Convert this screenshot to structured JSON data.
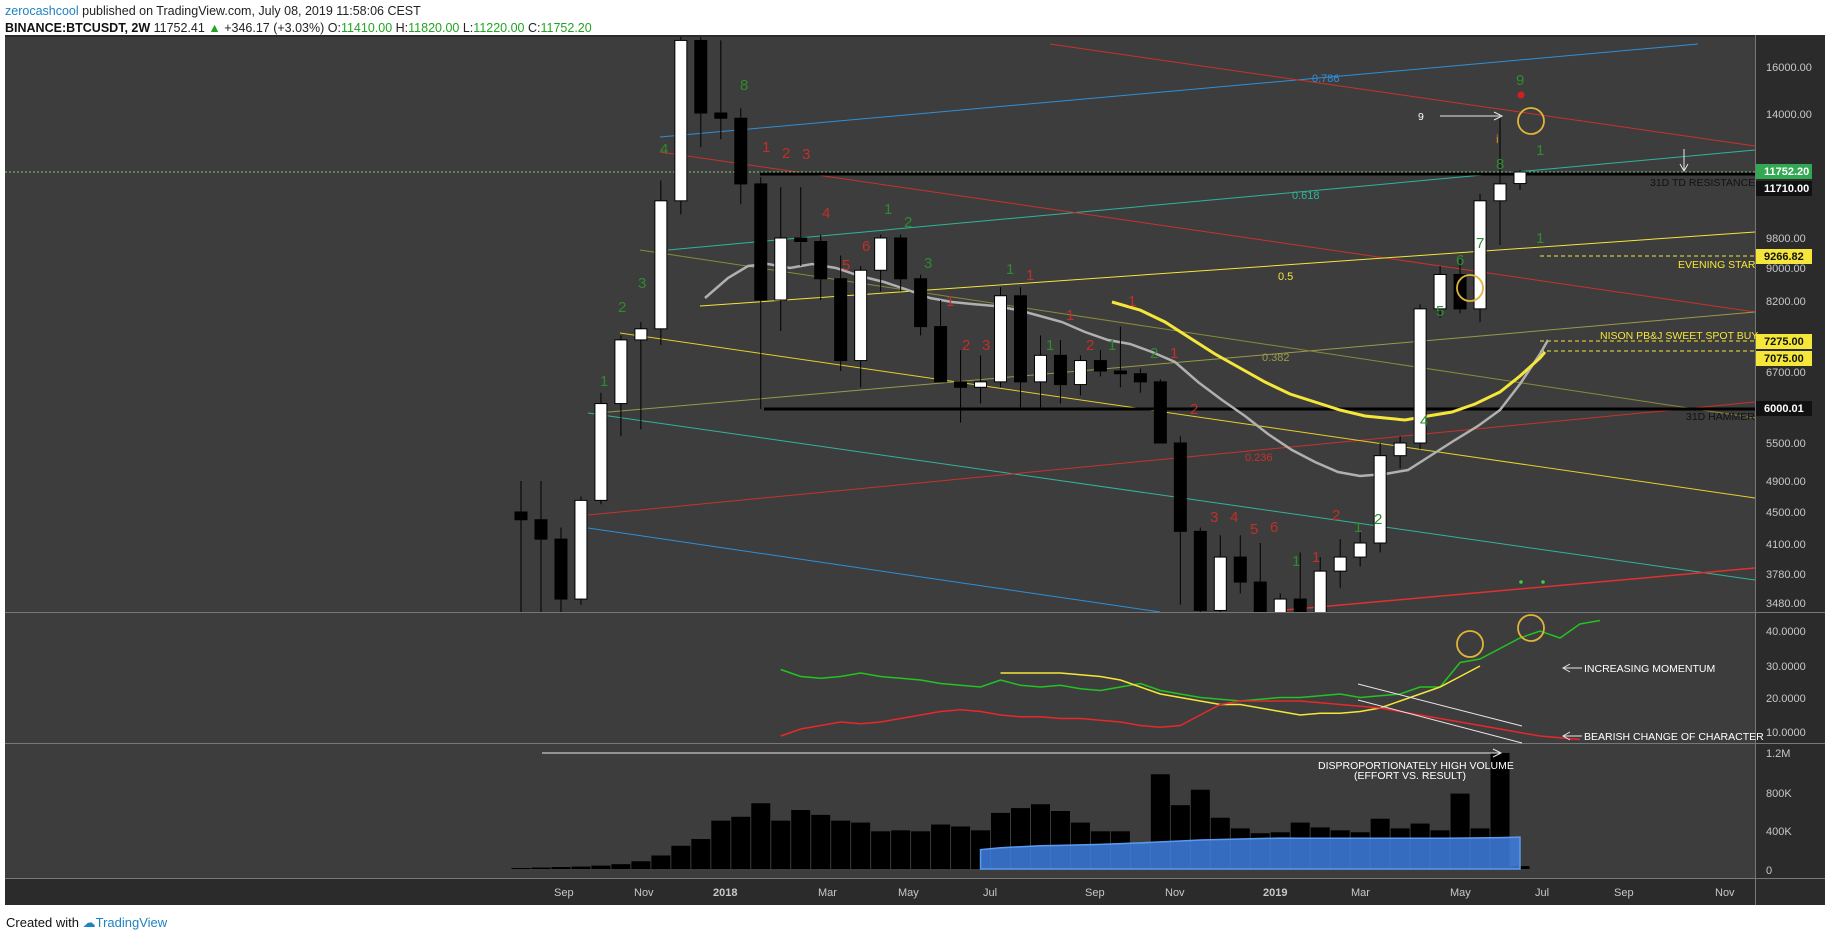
{
  "header": {
    "author": "zerocashcool",
    "published": "published on TradingView.com, July 08, 2019 11:58:06 CEST",
    "symbol": "BINANCE:BTCUSDT, 2W",
    "last": "11752.41",
    "change": "+346.17 (+3.03%)",
    "o_label": "O:",
    "o_value": "11410.00",
    "h_label": "H:",
    "h_value": "11820.00",
    "l_label": "L:",
    "l_value": "11220.00",
    "c_label": "C:",
    "c_value": "11752.20"
  },
  "footer": {
    "created_with": "Created with",
    "brand": "TradingView"
  },
  "colors": {
    "pane_bg": "#3d3d3d",
    "frame_bg": "#2b2b2b",
    "up_candle": "#ffffff",
    "down_candle": "#000000",
    "green_label": "#2e8b2e",
    "red_label": "#c0302a",
    "yellow": "#f5e63a",
    "blue_channel": "#2f8fd8",
    "red_line": "#c8322e",
    "teal_line": "#2fb59a",
    "price_tag_green": "#33a853",
    "price_tag_yellow": "#f5e63a"
  },
  "chart_data": [
    {
      "type": "candlestick",
      "title": "",
      "price_axis_ticks": [
        "16000.00",
        "14000.00",
        "11752.20",
        "11710.00",
        "9800.00",
        "9266.82",
        "9000.00",
        "8200.00",
        "7275.00",
        "7075.00",
        "6700.00",
        "6000.01",
        "5500.00",
        "4900.00",
        "4500.00",
        "4100.00",
        "3780.00",
        "3480.00"
      ],
      "x_ticks": [
        "Sep",
        "Nov",
        "2018",
        "Mar",
        "May",
        "Jul",
        "Sep",
        "Nov",
        "2019",
        "Mar",
        "May",
        "Jul",
        "Sep",
        "Nov"
      ],
      "price_tags": [
        {
          "value": "11752.20",
          "style": "green"
        },
        {
          "value": "11710.00",
          "style": "dark"
        },
        {
          "value": "9266.82",
          "style": "yellow"
        },
        {
          "value": "7275.00",
          "style": "yellow"
        },
        {
          "value": "7075.00",
          "style": "yellow"
        },
        {
          "value": "6000.01",
          "style": "dark"
        }
      ],
      "fib_labels": [
        "0.786",
        "0.618",
        "0.5",
        "0.382",
        "0.236"
      ],
      "annotations": [
        "9",
        "31D TD RESISTANCE",
        "EVENING STAR",
        "NISON PB&J SWEET SPOT BUY",
        "31D HAMMER"
      ],
      "candles": [
        {
          "o": 4500,
          "h": 4900,
          "l": 3200,
          "c": 4400
        },
        {
          "o": 4400,
          "h": 4900,
          "l": 3400,
          "c": 4150
        },
        {
          "o": 4150,
          "h": 4300,
          "l": 3200,
          "c": 3550
        },
        {
          "o": 3550,
          "h": 4700,
          "l": 3500,
          "c": 4650
        },
        {
          "o": 4650,
          "h": 6300,
          "l": 4600,
          "c": 6100
        },
        {
          "o": 6100,
          "h": 7400,
          "l": 5600,
          "c": 7300
        },
        {
          "o": 7300,
          "h": 7700,
          "l": 5700,
          "c": 7550
        },
        {
          "o": 7550,
          "h": 11500,
          "l": 7200,
          "c": 10900
        },
        {
          "o": 10900,
          "h": 19800,
          "l": 10500,
          "c": 17200
        },
        {
          "o": 17200,
          "h": 17800,
          "l": 12700,
          "c": 14000
        },
        {
          "o": 14000,
          "h": 17200,
          "l": 13000,
          "c": 13800
        },
        {
          "o": 13800,
          "h": 14200,
          "l": 10800,
          "c": 11400
        },
        {
          "o": 11400,
          "h": 11600,
          "l": 6000,
          "c": 8200
        },
        {
          "o": 8200,
          "h": 11300,
          "l": 7500,
          "c": 9800
        },
        {
          "o": 9800,
          "h": 11300,
          "l": 9000,
          "c": 9700
        },
        {
          "o": 9700,
          "h": 9900,
          "l": 8200,
          "c": 8700
        },
        {
          "o": 8700,
          "h": 9300,
          "l": 6700,
          "c": 6900
        },
        {
          "o": 6900,
          "h": 9000,
          "l": 6400,
          "c": 8900
        },
        {
          "o": 8900,
          "h": 9900,
          "l": 8400,
          "c": 9800
        },
        {
          "o": 9800,
          "h": 9900,
          "l": 8400,
          "c": 8700
        },
        {
          "o": 8700,
          "h": 8800,
          "l": 7400,
          "c": 7600
        },
        {
          "o": 7600,
          "h": 8200,
          "l": 6500,
          "c": 6500
        },
        {
          "o": 6500,
          "h": 7100,
          "l": 5800,
          "c": 6400
        },
        {
          "o": 6400,
          "h": 7000,
          "l": 6100,
          "c": 6500
        },
        {
          "o": 6500,
          "h": 8500,
          "l": 6400,
          "c": 8300
        },
        {
          "o": 8300,
          "h": 8500,
          "l": 6000,
          "c": 6500
        },
        {
          "o": 6500,
          "h": 7400,
          "l": 6000,
          "c": 7000
        },
        {
          "o": 7000,
          "h": 7300,
          "l": 6100,
          "c": 6450
        },
        {
          "o": 6450,
          "h": 7000,
          "l": 6250,
          "c": 6900
        },
        {
          "o": 6900,
          "h": 7100,
          "l": 6600,
          "c": 6700
        },
        {
          "o": 6700,
          "h": 7600,
          "l": 6400,
          "c": 6650
        },
        {
          "o": 6650,
          "h": 6750,
          "l": 6300,
          "c": 6500
        },
        {
          "o": 6500,
          "h": 6550,
          "l": 5500,
          "c": 5500
        },
        {
          "o": 5500,
          "h": 5600,
          "l": 3500,
          "c": 4250
        },
        {
          "o": 4250,
          "h": 4300,
          "l": 3200,
          "c": 3450
        },
        {
          "o": 3450,
          "h": 4200,
          "l": 3200,
          "c": 3950
        },
        {
          "o": 3950,
          "h": 4200,
          "l": 3600,
          "c": 3700
        },
        {
          "o": 3700,
          "h": 4100,
          "l": 3350,
          "c": 3400
        },
        {
          "o": 3400,
          "h": 3600,
          "l": 3360,
          "c": 3550
        },
        {
          "o": 3550,
          "h": 4000,
          "l": 3350,
          "c": 3420
        },
        {
          "o": 3420,
          "h": 3950,
          "l": 3400,
          "c": 3800
        },
        {
          "o": 3800,
          "h": 4150,
          "l": 3650,
          "c": 3950
        },
        {
          "o": 3950,
          "h": 4250,
          "l": 3850,
          "c": 4100
        },
        {
          "o": 4100,
          "h": 5500,
          "l": 4000,
          "c": 5300
        },
        {
          "o": 5300,
          "h": 5600,
          "l": 5100,
          "c": 5500
        },
        {
          "o": 5500,
          "h": 8100,
          "l": 5400,
          "c": 8000
        },
        {
          "o": 8000,
          "h": 9000,
          "l": 7800,
          "c": 8800
        },
        {
          "o": 8800,
          "h": 9200,
          "l": 7900,
          "c": 8000
        },
        {
          "o": 8000,
          "h": 11100,
          "l": 7700,
          "c": 10900
        },
        {
          "o": 10900,
          "h": 13800,
          "l": 9600,
          "c": 11400
        },
        {
          "o": 11410,
          "h": 11820,
          "l": 11220,
          "c": 11752
        }
      ]
    },
    {
      "type": "line",
      "title": "",
      "y_ticks": [
        "40.0000",
        "30.0000",
        "20.0000",
        "10.0000"
      ],
      "ylim": [
        5,
        43
      ],
      "annotations": [
        "INCREASING MOMENTUM",
        "BEARISH CHANGE OF CHARACTER"
      ],
      "series": [
        {
          "color": "#22c322",
          "start": 13,
          "values": [
            29,
            27,
            26.5,
            27,
            28,
            27,
            26.5,
            26,
            25,
            24.5,
            24,
            26,
            24.5,
            24,
            24.5,
            23.5,
            23,
            24,
            25,
            23,
            22,
            21,
            20.5,
            20,
            20.5,
            21,
            21,
            21.5,
            22,
            21,
            21.5,
            22,
            24,
            24,
            31,
            32,
            35,
            38,
            40,
            38,
            42,
            43
          ]
        },
        {
          "color": "#f5e63a",
          "start": 24,
          "values": [
            28,
            28,
            28,
            28,
            27.5,
            27,
            26,
            24,
            22,
            21,
            20,
            19,
            19,
            18,
            17,
            16,
            16.5,
            16.5,
            17,
            18,
            20,
            22,
            24,
            27,
            30
          ]
        },
        {
          "color": "#e8282a",
          "start": 13,
          "values": [
            10,
            12,
            13,
            14,
            13.5,
            14,
            15,
            16,
            17,
            17.5,
            17,
            16,
            15.5,
            15.5,
            15,
            15,
            14.5,
            14,
            13,
            12.5,
            13,
            16,
            19,
            20,
            20,
            20,
            20,
            19.5,
            19,
            18.5,
            18,
            17,
            16,
            15,
            14,
            13,
            12,
            11,
            10,
            9.5,
            9
          ]
        }
      ]
    },
    {
      "type": "bar",
      "title": "",
      "y_ticks": [
        "1.2M",
        "800K",
        "400K",
        "0"
      ],
      "ylim": [
        0,
        1200000
      ],
      "annotations": [
        "DISPROPORTIONATELY HIGH VOLUME",
        "(EFFORT VS. RESULT)"
      ],
      "values": [
        10000,
        15000,
        20000,
        25000,
        35000,
        50000,
        80000,
        140000,
        240000,
        310000,
        500000,
        540000,
        680000,
        500000,
        610000,
        560000,
        500000,
        480000,
        390000,
        400000,
        390000,
        460000,
        440000,
        400000,
        580000,
        630000,
        670000,
        600000,
        480000,
        390000,
        390000,
        260000,
        980000,
        660000,
        820000,
        530000,
        420000,
        370000,
        380000,
        480000,
        430000,
        400000,
        380000,
        520000,
        420000,
        470000,
        400000,
        780000,
        420000,
        1200000,
        30000
      ],
      "volume_ma": {
        "color": "#3f7fe0",
        "start": 23,
        "values": [
          200000,
          220000,
          230000,
          240000,
          245000,
          250000,
          255000,
          262000,
          270000,
          280000,
          290000,
          300000,
          305000,
          310000,
          315000,
          320000,
          318000,
          318000,
          318000,
          318000,
          318000,
          318000,
          318000,
          318000,
          320000,
          322000,
          325000,
          330000
        ]
      }
    }
  ]
}
